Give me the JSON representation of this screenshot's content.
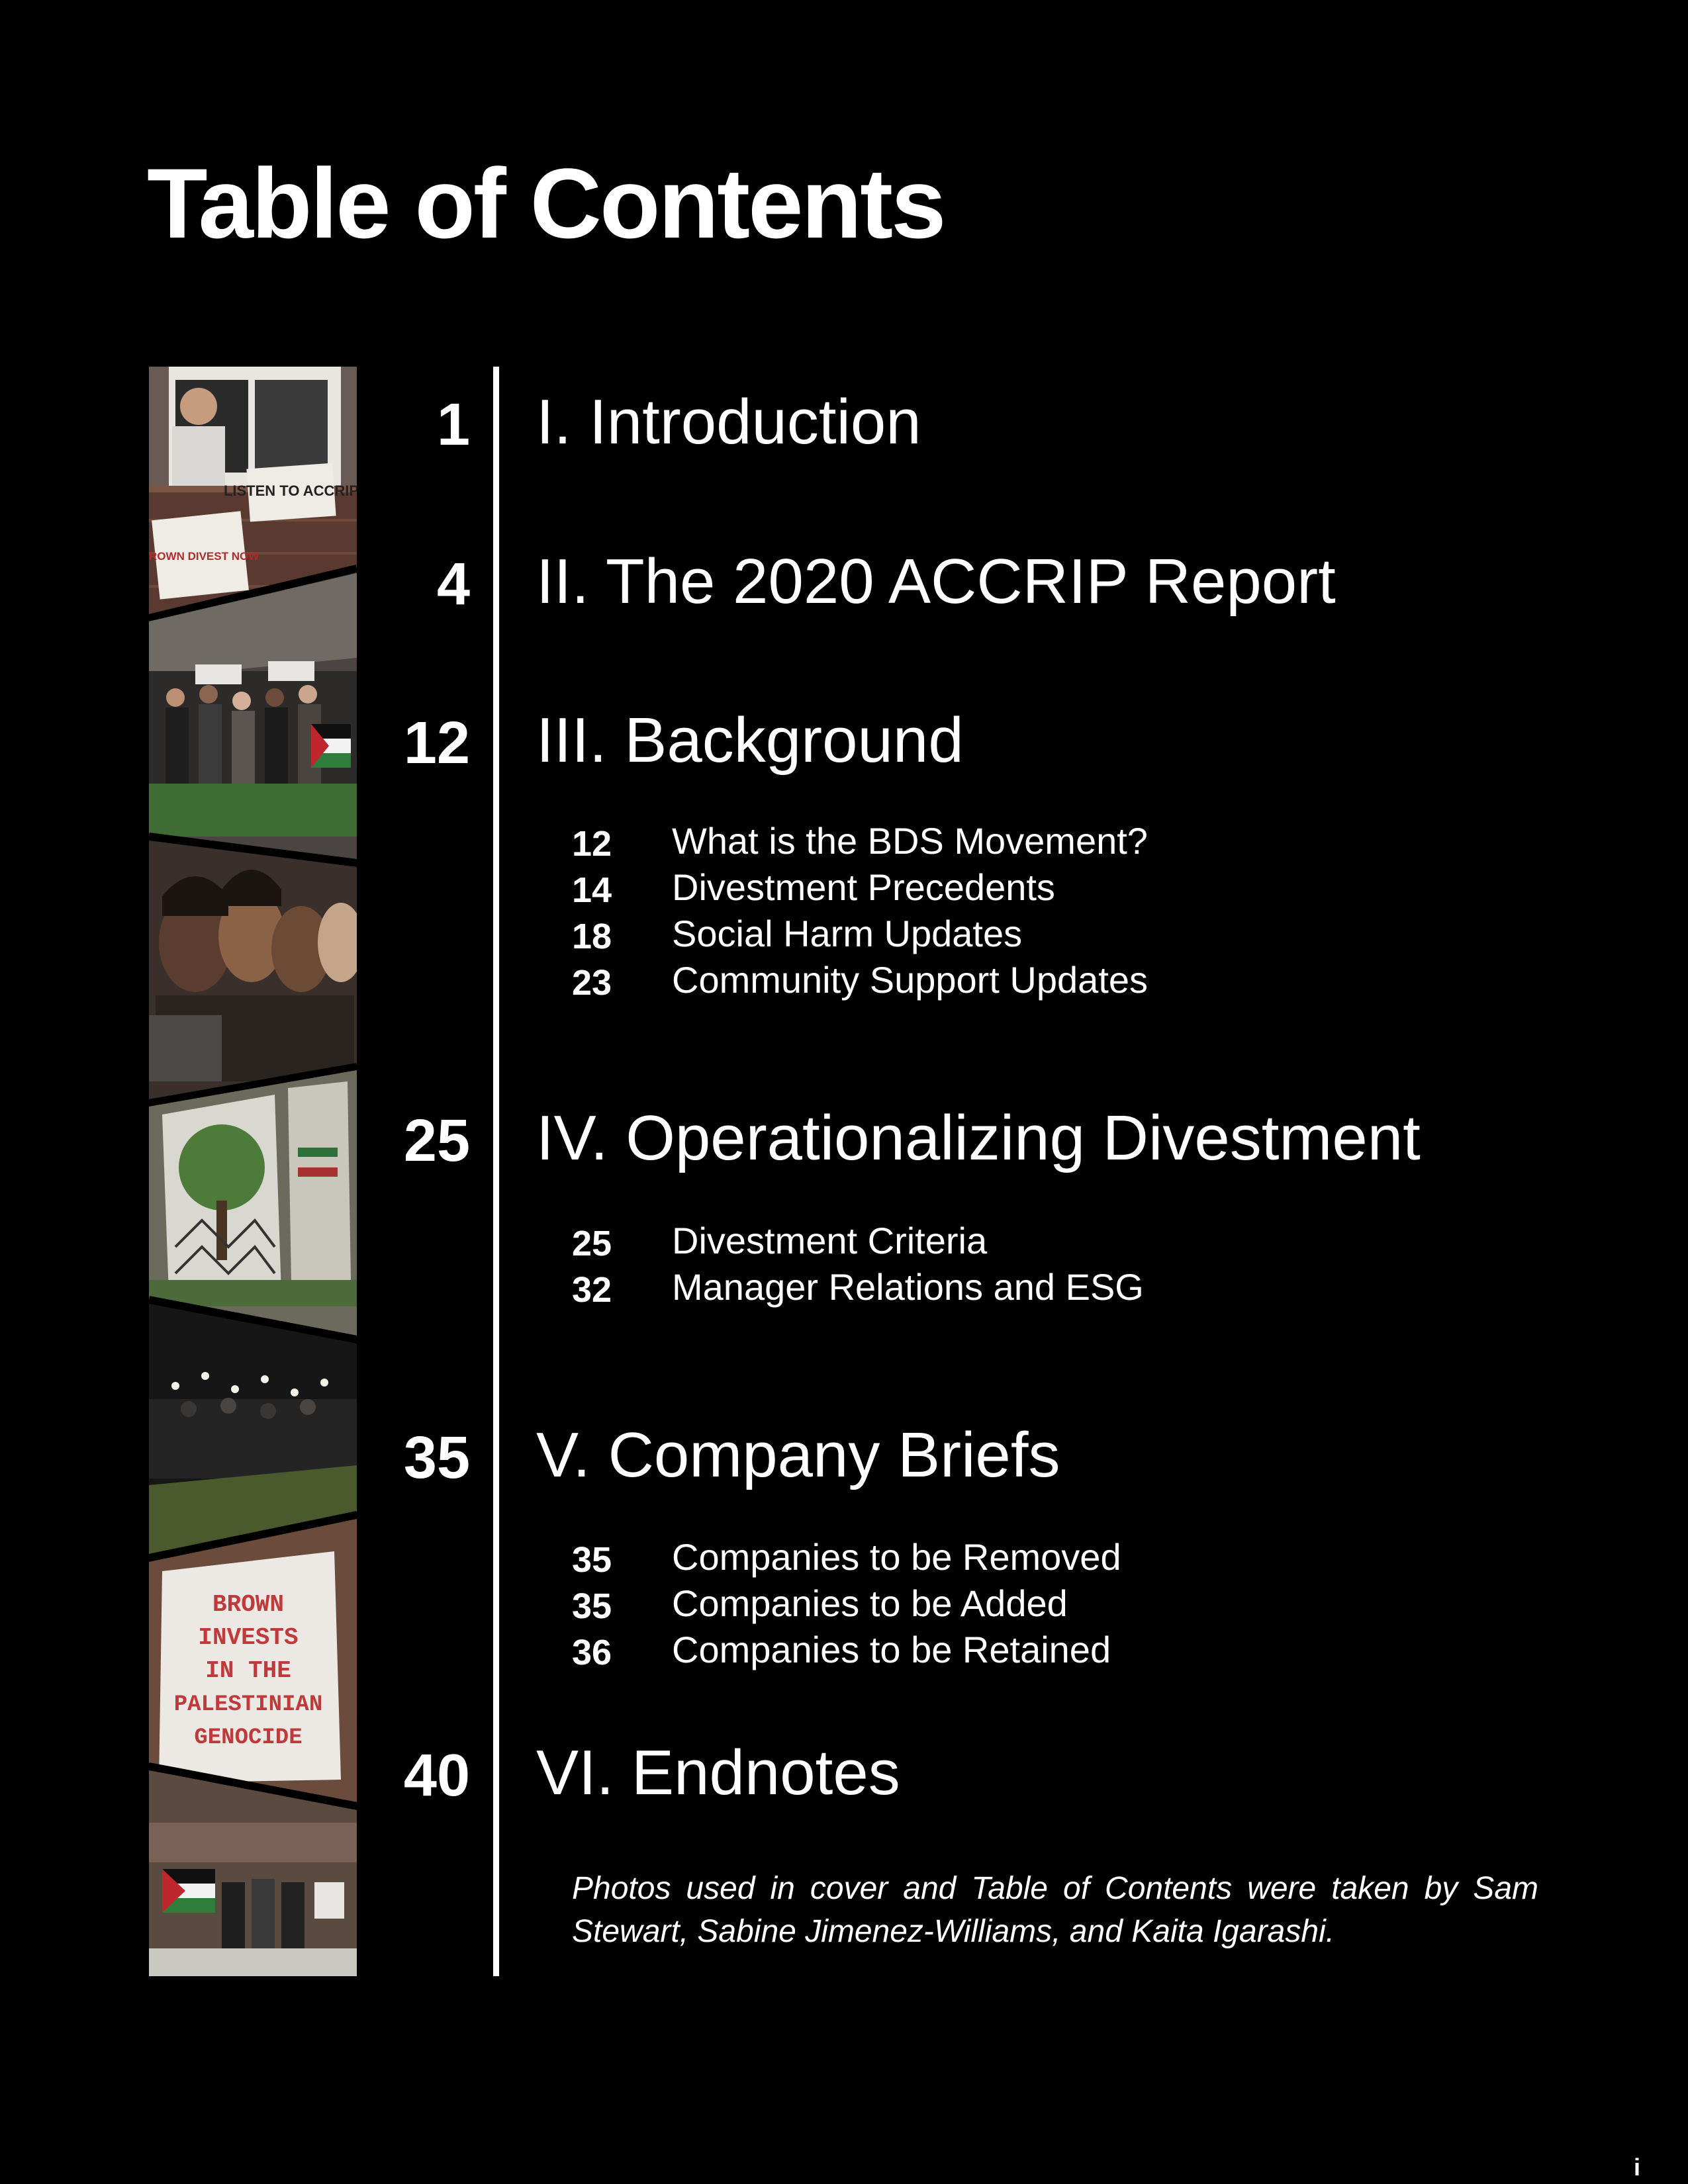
{
  "page": {
    "title": "Table of Contents",
    "footer_page": "i"
  },
  "toc": {
    "sections": [
      {
        "page": "1",
        "title": "I. Introduction",
        "subsections": []
      },
      {
        "page": "4",
        "title": "II. The 2020 ACCRIP Report",
        "subsections": []
      },
      {
        "page": "12",
        "title": "III. Background",
        "subsections": [
          {
            "page": "12",
            "title": "What is the BDS Movement?"
          },
          {
            "page": "14",
            "title": "Divestment Precedents"
          },
          {
            "page": "18",
            "title": "Social Harm Updates"
          },
          {
            "page": "23",
            "title": "Community Support Updates"
          }
        ]
      },
      {
        "page": "25",
        "title": "IV. Operationalizing Divestment",
        "subsections": [
          {
            "page": "25",
            "title": "Divestment Criteria"
          },
          {
            "page": "32",
            "title": "Manager Relations and ESG"
          }
        ]
      },
      {
        "page": "35",
        "title": "V. Company Briefs",
        "subsections": [
          {
            "page": "35",
            "title": "Companies to be Removed"
          },
          {
            "page": "35",
            "title": "Companies to be Added"
          },
          {
            "page": "36",
            "title": "Companies to be Retained"
          }
        ]
      },
      {
        "page": "40",
        "title": "VI. Endnotes",
        "subsections": []
      }
    ]
  },
  "credits": "Photos used in cover and Table of Contents were taken by Sam Stewart, Sabine Jimenez-Williams, and Kaita Igarashi.",
  "collage": {
    "sign_texts": {
      "listen_sign": "LISTEN TO ACCRIP",
      "brown_divest_sign": "BROWN DIVEST NOW",
      "banner_line_1": "BROWN",
      "banner_line_2": "INVESTS",
      "banner_line_3": "IN THE",
      "banner_line_4": "PALESTINIAN",
      "banner_line_5": "GENOCIDE"
    }
  },
  "colors": {
    "background": "#000000",
    "text": "#ffffff",
    "banner_text": "#c0393b"
  }
}
